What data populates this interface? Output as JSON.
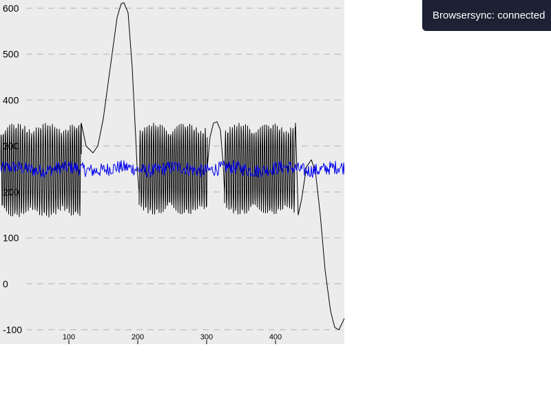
{
  "colors": {
    "background": "#ececec",
    "grid": "#bdbdbd",
    "series_black": "#000000",
    "series_blue": "#0000ee",
    "toast_bg": "#1c2134",
    "toast_text": "#ffffff"
  },
  "toast": {
    "text": "Browsersync: connected"
  },
  "chart_data": {
    "type": "line",
    "title": "",
    "xlabel": "",
    "ylabel": "",
    "xlim": [
      1,
      500
    ],
    "ylim": [
      -100,
      600
    ],
    "grid": true,
    "y_ticks": [
      -100,
      0,
      100,
      200,
      300,
      400,
      500,
      600
    ],
    "x_ticks": [
      100,
      200,
      300,
      400
    ],
    "series": [
      {
        "color": "#000000",
        "segments": [
          {
            "kind": "oscillation",
            "x_start": 1,
            "x_end": 118,
            "min": 145,
            "max": 350,
            "period": 3.2
          },
          {
            "kind": "curve",
            "points": [
              [
                118,
                350
              ],
              [
                125,
                300
              ],
              [
                135,
                285
              ],
              [
                142,
                300
              ],
              [
                150,
                360
              ],
              [
                160,
                470
              ],
              [
                170,
                580
              ],
              [
                176,
                610
              ],
              [
                180,
                612
              ],
              [
                186,
                590
              ],
              [
                192,
                470
              ],
              [
                197,
                320
              ],
              [
                199,
                255
              ],
              [
                202,
                200
              ]
            ]
          },
          {
            "kind": "oscillation",
            "x_start": 202,
            "x_end": 301,
            "min": 150,
            "max": 350,
            "period": 3.2
          },
          {
            "kind": "curve",
            "points": [
              [
                301,
                255
              ],
              [
                305,
                320
              ],
              [
                310,
                350
              ],
              [
                315,
                353
              ],
              [
                320,
                335
              ],
              [
                324,
                260
              ],
              [
                326,
                200
              ]
            ]
          },
          {
            "kind": "oscillation",
            "x_start": 326,
            "x_end": 429,
            "min": 150,
            "max": 350,
            "period": 3.2
          },
          {
            "kind": "curve",
            "points": [
              [
                429,
                350
              ],
              [
                431,
                250
              ],
              [
                433,
                150
              ],
              [
                438,
                185
              ],
              [
                445,
                255
              ],
              [
                452,
                270
              ],
              [
                458,
                245
              ],
              [
                465,
                150
              ],
              [
                472,
                30
              ],
              [
                480,
                -60
              ],
              [
                486,
                -95
              ],
              [
                492,
                -100
              ],
              [
                497,
                -85
              ],
              [
                500,
                -75
              ]
            ]
          }
        ]
      },
      {
        "color": "#0000ee",
        "segments": [
          {
            "kind": "noise",
            "x_start": 1,
            "x_end": 500,
            "center": 250,
            "amplitude": 15
          }
        ]
      }
    ]
  }
}
